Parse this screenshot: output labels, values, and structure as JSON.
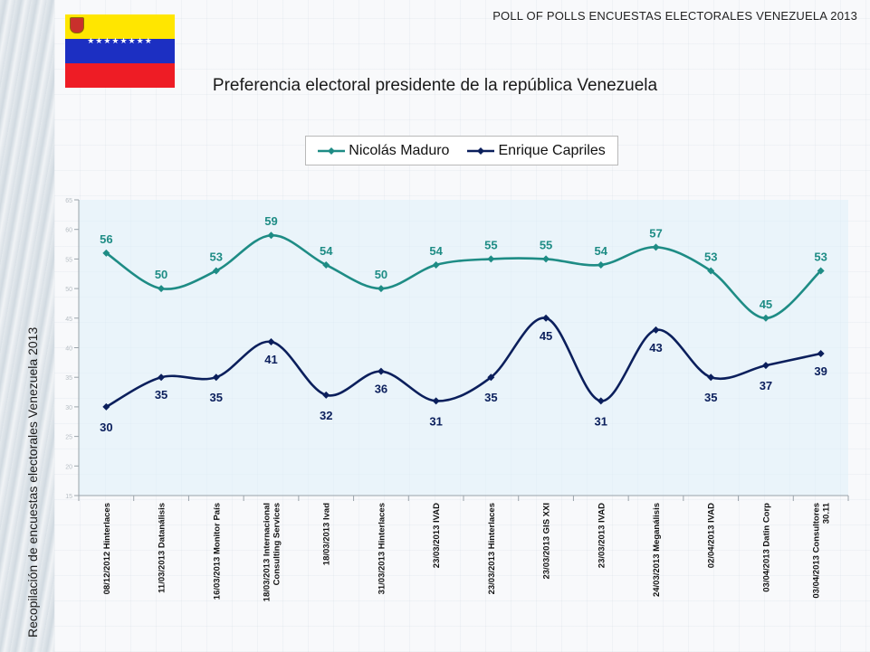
{
  "header": {
    "title": "POLL OF POLLS ENCUESTAS ELECTORALES VENEZUELA 2013"
  },
  "side_caption": "Recopilación de encuestas electorales Venezuela 2013",
  "flag": {
    "colors": [
      "#ffe600",
      "#1c2fc2",
      "#ee1c25"
    ],
    "stars": "★★★★★★★★"
  },
  "chart_data": {
    "type": "line",
    "title": "Preferencia electoral presidente de la república Venezuela",
    "xlabel": "",
    "ylabel": "",
    "ylim": [
      15,
      65
    ],
    "y_ticks": [
      15,
      20,
      25,
      30,
      35,
      40,
      45,
      50,
      55,
      60,
      65
    ],
    "grid": false,
    "legend_position": "top",
    "categories": [
      [
        "08/12/2012  Hinterlaces"
      ],
      [
        "11/03/2013 Datanálisis"
      ],
      [
        "16/03/2013 Monitor País"
      ],
      [
        "18/03/2013 Internacional",
        "Consulting Services"
      ],
      [
        "18/03/2013 Ivad"
      ],
      [
        "31/03/2013 Hinterlaces"
      ],
      [
        "23/03/2013 IVAD"
      ],
      [
        "23/03/2013 Hinterlaces"
      ],
      [
        "23/03/2013 GIS XXI"
      ],
      [
        "23/03/2013 IVAD"
      ],
      [
        "24/03/2013 Meganálisis"
      ],
      [
        "02/04/2013 IVAD"
      ],
      [
        "03/04/2013 Datin Corp"
      ],
      [
        "03/04/2013 Consultores",
        "30.11"
      ]
    ],
    "series": [
      {
        "name": "Nicolás Maduro",
        "color": "#1e8c85",
        "values": [
          56,
          50,
          53,
          59,
          54,
          50,
          54,
          55,
          55,
          54,
          57,
          53,
          45,
          53
        ],
        "label_position": "above"
      },
      {
        "name": "Enrique Capriles",
        "color": "#0b1f5c",
        "values": [
          30,
          35,
          35,
          41,
          32,
          36,
          31,
          35,
          45,
          31,
          43,
          35,
          37,
          39
        ],
        "label_position": "alternating"
      }
    ]
  }
}
